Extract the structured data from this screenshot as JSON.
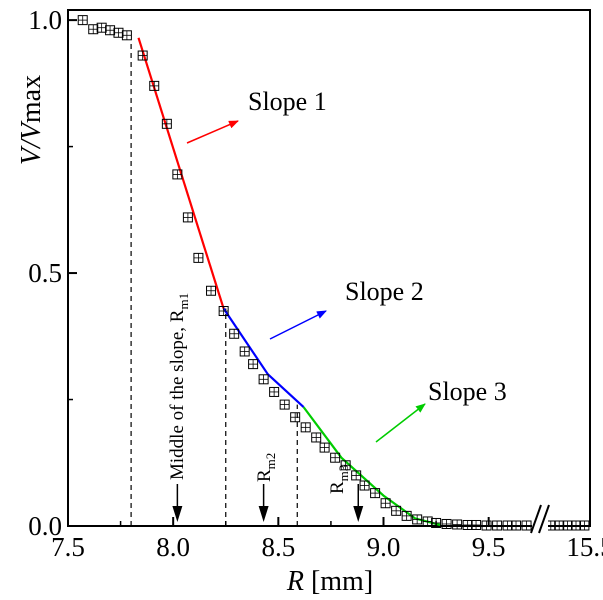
{
  "chart_data": {
    "type": "scatter",
    "x_label": {
      "main": "R",
      "unit": " [mm]"
    },
    "y_label": {
      "main": "V/V",
      "sub": "max"
    },
    "x_axis": {
      "segments": [
        {
          "range": [
            7.5,
            9.725
          ],
          "ticks": [
            "7.5",
            "8.0",
            "8.5",
            "9.0",
            "9.5"
          ],
          "tick_values": [
            7.5,
            8.0,
            8.5,
            9.0,
            9.5
          ]
        },
        {
          "range": [
            15.2,
            15.5
          ],
          "ticks": [
            "15.5"
          ],
          "tick_values": [
            15.5
          ]
        }
      ],
      "break_after": 9.725
    },
    "y_axis": {
      "range": [
        0,
        1.02
      ],
      "ticks": [
        "0.0",
        "0.5",
        "1.0"
      ],
      "tick_values": [
        0.0,
        0.5,
        1.0
      ]
    },
    "markers": {
      "name": "measured",
      "x": [
        7.57,
        7.62,
        7.66,
        7.7,
        7.74,
        7.78,
        7.855,
        7.91,
        7.97,
        8.02,
        8.07,
        8.12,
        8.18,
        8.24,
        8.29,
        8.34,
        8.38,
        8.43,
        8.48,
        8.53,
        8.58,
        8.63,
        8.68,
        8.72,
        8.77,
        8.82,
        8.87,
        8.91,
        8.96,
        9.01,
        9.06,
        9.11,
        9.16,
        9.21,
        9.25,
        9.3,
        9.35,
        9.4,
        9.44,
        9.49,
        9.54,
        9.59,
        9.63,
        9.68,
        15.22,
        15.28,
        15.34,
        15.4,
        15.46
      ],
      "y": [
        1.0,
        0.982,
        0.985,
        0.98,
        0.975,
        0.97,
        0.93,
        0.87,
        0.795,
        0.695,
        0.61,
        0.53,
        0.465,
        0.425,
        0.38,
        0.345,
        0.32,
        0.29,
        0.265,
        0.24,
        0.215,
        0.195,
        0.175,
        0.155,
        0.135,
        0.12,
        0.1,
        0.08,
        0.065,
        0.045,
        0.03,
        0.02,
        0.013,
        0.009,
        0.006,
        0.004,
        0.003,
        0.002,
        0.002,
        0.001,
        0.001,
        0.001,
        0.001,
        0.001,
        0.001,
        0.001,
        0.001,
        0.001,
        0.001
      ]
    },
    "slopes": [
      {
        "label": "Slope 1",
        "color": "#ff0000",
        "x": [
          7.835,
          8.24
        ],
        "y": [
          0.965,
          0.43
        ]
      },
      {
        "label": "Slope 2",
        "color": "#0000ff",
        "x": [
          8.24,
          8.45,
          8.62
        ],
        "y": [
          0.43,
          0.3,
          0.235
        ]
      },
      {
        "label": "Slope 3",
        "color": "#00cc00",
        "x": [
          8.62,
          8.8,
          9.0,
          9.15,
          9.27
        ],
        "y": [
          0.235,
          0.135,
          0.06,
          0.015,
          0.002
        ]
      }
    ],
    "dashed_lines": [
      {
        "x": 7.8,
        "y_top": 0.96
      },
      {
        "x": 8.25,
        "y_top": 0.43
      },
      {
        "x": 8.59,
        "y_top": 0.24
      }
    ],
    "annotations": {
      "middle_label": "Middle of the slope, R",
      "middle_sub": "m1",
      "rm2": "R",
      "rm2_sub": "m2",
      "rm3": "R",
      "rm3_sub": "m3"
    },
    "indicator_arrows": [
      {
        "x": 8.02,
        "label_ref": "middle"
      },
      {
        "x": 8.43,
        "label_ref": "rm2"
      },
      {
        "x": 8.88,
        "label_ref": "rm3"
      }
    ]
  }
}
